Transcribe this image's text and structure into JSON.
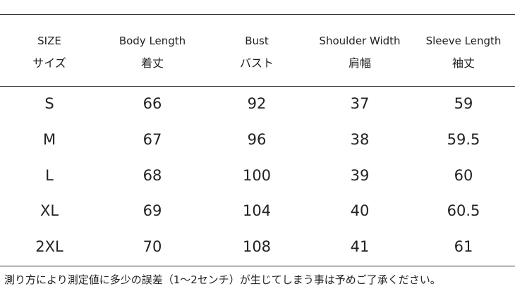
{
  "header": {
    "columns": [
      {
        "en": "SIZE",
        "ja": "サイズ"
      },
      {
        "en": "Body Length",
        "ja": "着丈"
      },
      {
        "en": "Bust",
        "ja": "バスト"
      },
      {
        "en": "Shoulder Width",
        "ja": "肩幅"
      },
      {
        "en": "Sleeve Length",
        "ja": "袖丈"
      }
    ]
  },
  "table": {
    "rows": [
      [
        "S",
        66,
        92,
        37,
        59
      ],
      [
        "M",
        67,
        96,
        38,
        59.5
      ],
      [
        "L",
        68,
        100,
        39,
        60
      ],
      [
        "XL",
        69,
        104,
        40,
        60.5
      ],
      [
        "2XL",
        70,
        108,
        41,
        61
      ]
    ]
  },
  "note": "測り方により測定値に多少の誤差（1〜2センチ）が生じてしまう事は予めご了承ください。"
}
